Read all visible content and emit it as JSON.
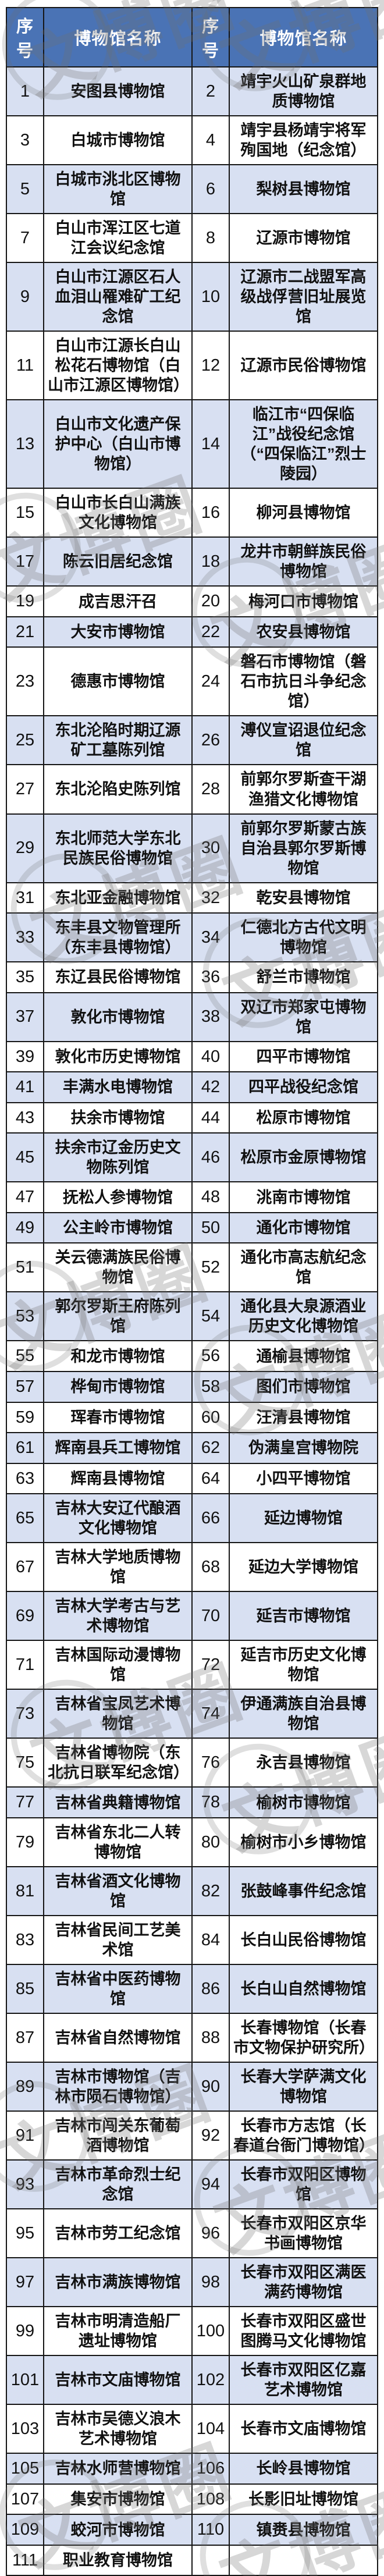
{
  "watermark": {
    "text": "文博圈"
  },
  "colors": {
    "header_bg": "#4a73b5",
    "header_fg": "#ffffff",
    "row_alt": "#d8e0f2",
    "border": "#161616"
  },
  "table": {
    "headers": [
      "序号",
      "博物馆名称",
      "序号",
      "博物馆名称"
    ],
    "rows": [
      {
        "l_no": "1",
        "l_name": "安图县博物馆",
        "r_no": "2",
        "r_name": "靖宇火山矿泉群地质博物馆"
      },
      {
        "l_no": "3",
        "l_name": "白城市博物馆",
        "r_no": "4",
        "r_name": "靖宇县杨靖宇将军殉国地（纪念馆）"
      },
      {
        "l_no": "5",
        "l_name": "白城市洮北区博物馆",
        "r_no": "6",
        "r_name": "梨树县博物馆"
      },
      {
        "l_no": "7",
        "l_name": "白山市浑江区七道江会议纪念馆",
        "r_no": "8",
        "r_name": "辽源市博物馆"
      },
      {
        "l_no": "9",
        "l_name": "白山市江源区石人血泪山罹难矿工纪念馆",
        "r_no": "10",
        "r_name": "辽源市二战盟军高级战俘营旧址展览馆"
      },
      {
        "l_no": "11",
        "l_name": "白山市江源长白山松花石博物馆（白山市江源区博物馆）",
        "r_no": "12",
        "r_name": "辽源市民俗博物馆"
      },
      {
        "l_no": "13",
        "l_name": "白山市文化遗产保护中心（白山市博物馆）",
        "r_no": "14",
        "r_name": "临江市“四保临江”战役纪念馆（“四保临江”烈士陵园）"
      },
      {
        "l_no": "15",
        "l_name": "白山市长白山满族文化博物馆",
        "r_no": "16",
        "r_name": "柳河县博物馆"
      },
      {
        "l_no": "17",
        "l_name": "陈云旧居纪念馆",
        "r_no": "18",
        "r_name": "龙井市朝鲜族民俗博物馆"
      },
      {
        "l_no": "19",
        "l_name": "成吉思汗召",
        "r_no": "20",
        "r_name": "梅河口市博物馆"
      },
      {
        "l_no": "21",
        "l_name": "大安市博物馆",
        "r_no": "22",
        "r_name": "农安县博物馆"
      },
      {
        "l_no": "23",
        "l_name": "德惠市博物馆",
        "r_no": "24",
        "r_name": "磐石市博物馆（磐石市抗日斗争纪念馆）"
      },
      {
        "l_no": "25",
        "l_name": "东北沦陷时期辽源矿工墓陈列馆",
        "r_no": "26",
        "r_name": "溥仪宣诏退位纪念馆"
      },
      {
        "l_no": "27",
        "l_name": "东北沦陷史陈列馆",
        "r_no": "28",
        "r_name": "前郭尔罗斯查干湖渔猎文化博物馆"
      },
      {
        "l_no": "29",
        "l_name": "东北师范大学东北民族民俗博物馆",
        "r_no": "30",
        "r_name": "前郭尔罗斯蒙古族自治县郭尔罗斯博物馆"
      },
      {
        "l_no": "31",
        "l_name": "东北亚金融博物馆",
        "r_no": "32",
        "r_name": "乾安县博物馆"
      },
      {
        "l_no": "33",
        "l_name": "东丰县文物管理所（东丰县博物馆）",
        "r_no": "34",
        "r_name": "仁德北方古代文明博物馆"
      },
      {
        "l_no": "35",
        "l_name": "东辽县民俗博物馆",
        "r_no": "36",
        "r_name": "舒兰市博物馆"
      },
      {
        "l_no": "37",
        "l_name": "敦化市博物馆",
        "r_no": "38",
        "r_name": "双辽市郑家屯博物馆"
      },
      {
        "l_no": "39",
        "l_name": "敦化市历史博物馆",
        "r_no": "40",
        "r_name": "四平市博物馆"
      },
      {
        "l_no": "41",
        "l_name": "丰满水电博物馆",
        "r_no": "42",
        "r_name": "四平战役纪念馆"
      },
      {
        "l_no": "43",
        "l_name": "扶余市博物馆",
        "r_no": "44",
        "r_name": "松原市博物馆"
      },
      {
        "l_no": "45",
        "l_name": "扶余市辽金历史文物陈列馆",
        "r_no": "46",
        "r_name": "松原市金原博物馆"
      },
      {
        "l_no": "47",
        "l_name": "抚松人参博物馆",
        "r_no": "48",
        "r_name": "洮南市博物馆"
      },
      {
        "l_no": "49",
        "l_name": "公主岭市博物馆",
        "r_no": "50",
        "r_name": "通化市博物馆"
      },
      {
        "l_no": "51",
        "l_name": "关云德满族民俗博物馆",
        "r_no": "52",
        "r_name": "通化市高志航纪念馆"
      },
      {
        "l_no": "53",
        "l_name": "郭尔罗斯王府陈列馆",
        "r_no": "54",
        "r_name": "通化县大泉源酒业历史文化博物馆"
      },
      {
        "l_no": "55",
        "l_name": "和龙市博物馆",
        "r_no": "56",
        "r_name": "通榆县博物馆"
      },
      {
        "l_no": "57",
        "l_name": "桦甸市博物馆",
        "r_no": "58",
        "r_name": "图们市博物馆"
      },
      {
        "l_no": "59",
        "l_name": "珲春市博物馆",
        "r_no": "60",
        "r_name": "汪清县博物馆"
      },
      {
        "l_no": "61",
        "l_name": "辉南县兵工博物馆",
        "r_no": "62",
        "r_name": "伪满皇宫博物院"
      },
      {
        "l_no": "63",
        "l_name": "辉南县博物馆",
        "r_no": "64",
        "r_name": "小四平博物馆"
      },
      {
        "l_no": "65",
        "l_name": "吉林大安辽代酿酒文化博物馆",
        "r_no": "66",
        "r_name": "延边博物馆"
      },
      {
        "l_no": "67",
        "l_name": "吉林大学地质博物馆",
        "r_no": "68",
        "r_name": "延边大学博物馆"
      },
      {
        "l_no": "69",
        "l_name": "吉林大学考古与艺术博物馆",
        "r_no": "70",
        "r_name": "延吉市博物馆"
      },
      {
        "l_no": "71",
        "l_name": "吉林国际动漫博物馆",
        "r_no": "72",
        "r_name": "延吉市历史文化博物馆"
      },
      {
        "l_no": "73",
        "l_name": "吉林省宝凤艺术博物馆",
        "r_no": "74",
        "r_name": "伊通满族自治县博物馆"
      },
      {
        "l_no": "75",
        "l_name": "吉林省博物院（东北抗日联军纪念馆）",
        "r_no": "76",
        "r_name": "永吉县博物馆"
      },
      {
        "l_no": "77",
        "l_name": "吉林省典籍博物馆",
        "r_no": "78",
        "r_name": "榆树市博物馆"
      },
      {
        "l_no": "79",
        "l_name": "吉林省东北二人转博物馆",
        "r_no": "80",
        "r_name": "榆树市小乡博物馆"
      },
      {
        "l_no": "81",
        "l_name": "吉林省酒文化博物馆",
        "r_no": "82",
        "r_name": "张鼓峰事件纪念馆"
      },
      {
        "l_no": "83",
        "l_name": "吉林省民间工艺美术馆",
        "r_no": "84",
        "r_name": "长白山民俗博物馆"
      },
      {
        "l_no": "85",
        "l_name": "吉林省中医药博物馆",
        "r_no": "86",
        "r_name": "长白山自然博物馆"
      },
      {
        "l_no": "87",
        "l_name": "吉林省自然博物馆",
        "r_no": "88",
        "r_name": "长春博物馆（长春市文物保护研究所）"
      },
      {
        "l_no": "89",
        "l_name": "吉林市博物馆（吉林市陨石博物馆）",
        "r_no": "90",
        "r_name": "长春大学萨满文化博物馆"
      },
      {
        "l_no": "91",
        "l_name": "吉林市闯关东葡萄酒博物馆",
        "r_no": "92",
        "r_name": "长春市方志馆（长春道台衙门博物馆）"
      },
      {
        "l_no": "93",
        "l_name": "吉林市革命烈士纪念馆",
        "r_no": "94",
        "r_name": "长春市双阳区博物馆"
      },
      {
        "l_no": "95",
        "l_name": "吉林市劳工纪念馆",
        "r_no": "96",
        "r_name": "长春市双阳区京华书画博物馆"
      },
      {
        "l_no": "97",
        "l_name": "吉林市满族博物馆",
        "r_no": "98",
        "r_name": "长春市双阳区满医满药博物馆"
      },
      {
        "l_no": "99",
        "l_name": "吉林市明清造船厂遗址博物馆",
        "r_no": "100",
        "r_name": "长春市双阳区盛世图腾马文化博物馆"
      },
      {
        "l_no": "101",
        "l_name": "吉林市文庙博物馆",
        "r_no": "102",
        "r_name": "长春市双阳区亿嘉艺术博物馆"
      },
      {
        "l_no": "103",
        "l_name": "吉林市吴德义浪木艺术博物馆",
        "r_no": "104",
        "r_name": "长春市文庙博物馆"
      },
      {
        "l_no": "105",
        "l_name": "吉林水师营博物馆",
        "r_no": "106",
        "r_name": "长岭县博物馆"
      },
      {
        "l_no": "107",
        "l_name": "集安市博物馆",
        "r_no": "108",
        "r_name": "长影旧址博物馆"
      },
      {
        "l_no": "109",
        "l_name": "蛟河市博物馆",
        "r_no": "110",
        "r_name": "镇赉县博物馆"
      },
      {
        "l_no": "111",
        "l_name": "职业教育博物馆",
        "r_no": "",
        "r_name": ""
      }
    ]
  }
}
